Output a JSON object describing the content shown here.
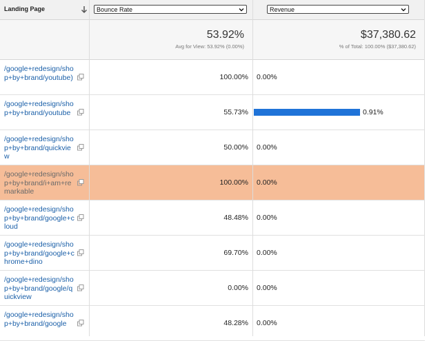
{
  "header": {
    "landing_page_label": "Landing Page",
    "metric_select": "Bounce Rate",
    "revenue_select": "Revenue"
  },
  "summary": {
    "bounce_value": "53.92%",
    "bounce_sub": "Avg for View: 53.92% (0.00%)",
    "revenue_value": "$37,380.62",
    "revenue_sub": "% of Total: 100.00% ($37,380.62)"
  },
  "rows": [
    {
      "landing_page": "/google+redesign/shop+by+brand/youtube)",
      "bounce_rate": "100.00%",
      "revenue_pct": "0.00%",
      "revenue_fraction": 0
    },
    {
      "landing_page": "/google+redesign/shop+by+brand/youtube",
      "bounce_rate": "55.73%",
      "revenue_pct": "0.91%",
      "revenue_fraction": 0.0091
    },
    {
      "landing_page": "/google+redesign/shop+by+brand/quickview",
      "bounce_rate": "50.00%",
      "revenue_pct": "0.00%",
      "revenue_fraction": 0
    },
    {
      "landing_page": "/google+redesign/shop+by+brand/i+am+remarkable",
      "bounce_rate": "100.00%",
      "revenue_pct": "0.00%",
      "revenue_fraction": 0
    },
    {
      "landing_page": "/google+redesign/shop+by+brand/google+cloud",
      "bounce_rate": "48.48%",
      "revenue_pct": "0.00%",
      "revenue_fraction": 0
    },
    {
      "landing_page": "/google+redesign/shop+by+brand/google+chrome+dino",
      "bounce_rate": "69.70%",
      "revenue_pct": "0.00%",
      "revenue_fraction": 0
    },
    {
      "landing_page": "/google+redesign/shop+by+brand/google/quickview",
      "bounce_rate": "0.00%",
      "revenue_pct": "0.00%",
      "revenue_fraction": 0
    },
    {
      "landing_page": "/google+redesign/shop+by+brand/google",
      "bounce_rate": "48.28%",
      "revenue_pct": "0.00%",
      "revenue_fraction": 0
    }
  ],
  "highlighted_row": 3,
  "colors": {
    "link": "#1a5fa8",
    "bar": "#1f73d8",
    "highlight": "#f6bd98"
  },
  "icons": {
    "sort": "arrow-down-icon",
    "external": "external-link-icon",
    "dropdown": "chevron-down-icon"
  }
}
